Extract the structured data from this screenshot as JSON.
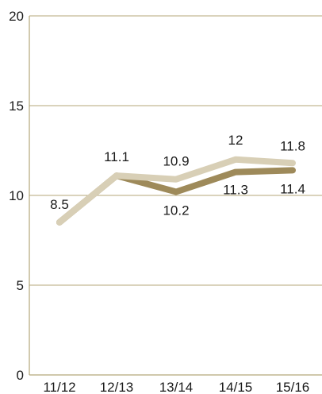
{
  "chart_data": {
    "type": "line",
    "categories": [
      "11/12",
      "12/13",
      "13/14",
      "14/15",
      "15/16"
    ],
    "ylim": [
      0,
      20
    ],
    "yticks": [
      "0",
      "5",
      "10",
      "15",
      "20"
    ],
    "grid": true,
    "title": "",
    "xlabel": "",
    "ylabel": "",
    "series": [
      {
        "values": [
          8.5,
          11.1,
          10.9,
          12,
          11.8
        ],
        "labels": [
          "8.5",
          "11.1",
          "10.9",
          "12",
          "11.8"
        ],
        "color": "#d8cfb6"
      },
      {
        "values": [
          8.5,
          11.1,
          10.2,
          11.3,
          11.4
        ],
        "labels": [
          "",
          "",
          "10.2",
          "11.3",
          "11.4"
        ],
        "color": "#9e8a5a"
      }
    ],
    "gridline_color": "#b5a77a"
  }
}
